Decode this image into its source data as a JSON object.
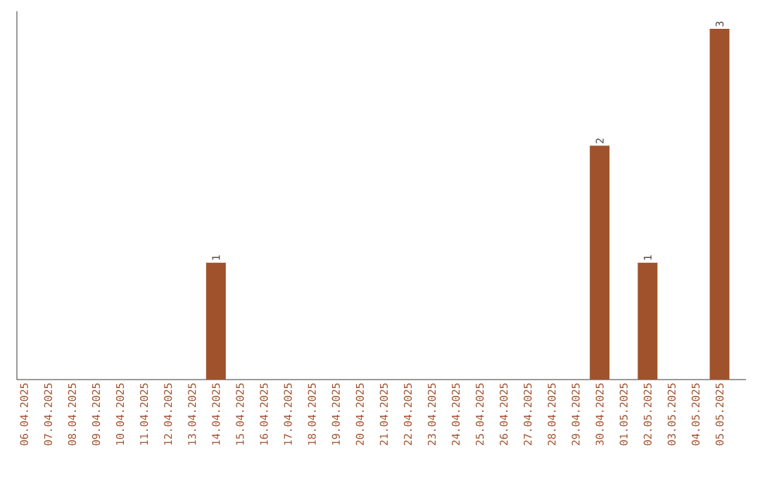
{
  "chart_data": {
    "type": "bar",
    "categories": [
      "06.04.2025",
      "07.04.2025",
      "08.04.2025",
      "09.04.2025",
      "10.04.2025",
      "11.04.2025",
      "12.04.2025",
      "13.04.2025",
      "14.04.2025",
      "15.04.2025",
      "16.04.2025",
      "17.04.2025",
      "18.04.2025",
      "19.04.2025",
      "20.04.2025",
      "21.04.2025",
      "22.04.2025",
      "23.04.2025",
      "24.04.2025",
      "25.04.2025",
      "26.04.2025",
      "27.04.2025",
      "28.04.2025",
      "29.04.2025",
      "30.04.2025",
      "01.05.2025",
      "02.05.2025",
      "03.05.2025",
      "04.05.2025",
      "05.05.2025"
    ],
    "values": [
      0,
      0,
      0,
      0,
      0,
      0,
      0,
      0,
      1,
      0,
      0,
      0,
      0,
      0,
      0,
      0,
      0,
      0,
      0,
      0,
      0,
      0,
      0,
      0,
      2,
      0,
      1,
      0,
      0,
      3
    ],
    "value_labels": [
      null,
      null,
      null,
      null,
      null,
      null,
      null,
      null,
      "1",
      null,
      null,
      null,
      null,
      null,
      null,
      null,
      null,
      null,
      null,
      null,
      null,
      null,
      null,
      null,
      "2",
      null,
      "1",
      null,
      null,
      "3"
    ],
    "color": "#a0522d"
  }
}
